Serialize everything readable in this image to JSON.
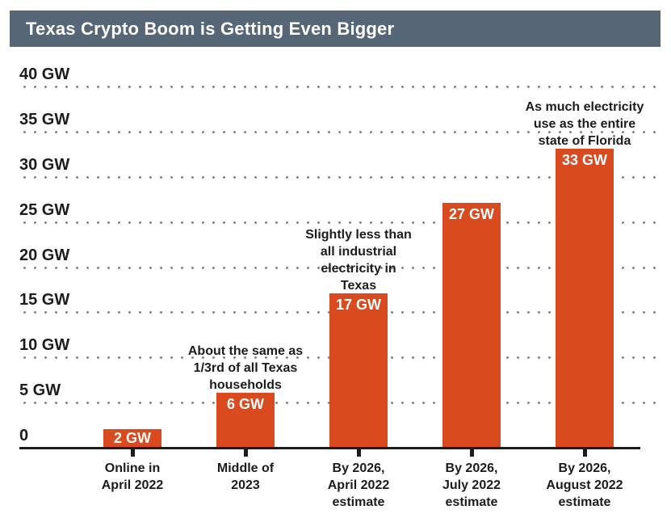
{
  "header": {
    "title": "Texas Crypto Boom is Getting Even Bigger"
  },
  "chart_data": {
    "type": "bar",
    "title": "Texas Crypto Boom is Getting Even Bigger",
    "unit": "GW",
    "ylim": [
      0,
      40
    ],
    "grid": "dotted horizontal, every 5 GW",
    "legend": "none",
    "y_ticks": [
      {
        "gw": 40,
        "label": "40 GW"
      },
      {
        "gw": 35,
        "label": "35 GW"
      },
      {
        "gw": 30,
        "label": "30 GW"
      },
      {
        "gw": 25,
        "label": "25 GW"
      },
      {
        "gw": 20,
        "label": "20 GW"
      },
      {
        "gw": 15,
        "label": "15 GW"
      },
      {
        "gw": 10,
        "label": "10 GW"
      },
      {
        "gw": 5,
        "label": "5 GW"
      },
      {
        "gw": 0,
        "label": "0"
      }
    ],
    "bars": [
      {
        "value": 2,
        "value_label": "2 GW",
        "category": "Online in\nApril 2022",
        "annotation": ""
      },
      {
        "value": 6,
        "value_label": "6 GW",
        "category": "Middle of\n2023",
        "annotation": "About the same as\n1/3rd of all Texas\nhouseholds"
      },
      {
        "value": 17,
        "value_label": "17 GW",
        "category": "By 2026,\nApril 2022\nestimate",
        "annotation": "Slightly less than\nall industrial\nelectricity in\nTexas"
      },
      {
        "value": 27,
        "value_label": "27 GW",
        "category": "By 2026,\nJuly 2022\nestimate",
        "annotation": ""
      },
      {
        "value": 33,
        "value_label": "33 GW",
        "category": "By 2026,\nAugust 2022\nestimate",
        "annotation": "As much electricity\nuse as the entire\nstate of Florida"
      }
    ],
    "colors": {
      "header_bg": "#566676",
      "header_text": "#ffffff",
      "bar": "#d94a1f",
      "bar_value_text": "#ffffff",
      "axis_text": "#1c1c1c",
      "grid_dot": "#7f7f7f",
      "baseline": "#1c1c1c"
    }
  }
}
